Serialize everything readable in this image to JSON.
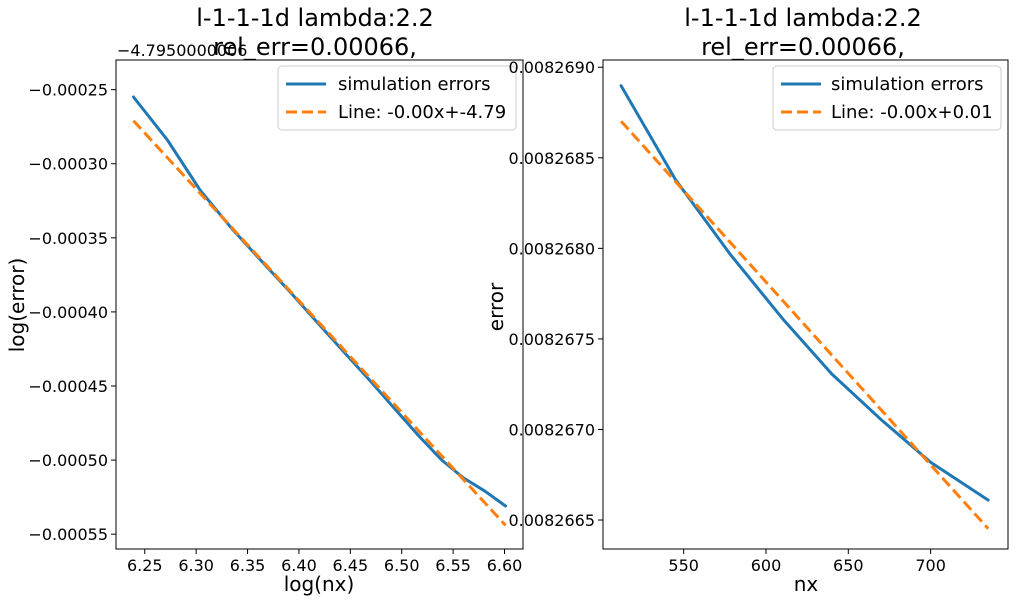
{
  "chart_data": [
    {
      "type": "line",
      "title": [
        "l-1-1-1d lambda:2.2",
        "rel_err=0.00066,"
      ],
      "offset_text": "−4.7950000006",
      "xlabel": "log(nx)",
      "ylabel": "log(error)",
      "xlim": [
        6.222,
        6.618
      ],
      "ylim": [
        -0.00056,
        -0.00023
      ],
      "xticks": [
        6.25,
        6.3,
        6.35,
        6.4,
        6.45,
        6.5,
        6.55,
        6.6
      ],
      "xtick_labels": [
        "6.25",
        "6.30",
        "6.35",
        "6.40",
        "6.45",
        "6.50",
        "6.55",
        "6.60"
      ],
      "yticks": [
        -0.00025,
        -0.0003,
        -0.00035,
        -0.0004,
        -0.00045,
        -0.0005,
        -0.00055
      ],
      "ytick_labels": [
        "−0.00025",
        "−0.00030",
        "−0.00035",
        "−0.00040",
        "−0.00045",
        "−0.00050",
        "−0.00055"
      ],
      "legend_position": "top-right",
      "grid": false,
      "series": [
        {
          "name": "simulation errors",
          "style": "solid",
          "color": "#1f77b4",
          "x": [
            6.239,
            6.272,
            6.304,
            6.335,
            6.364,
            6.392,
            6.419,
            6.445,
            6.47,
            6.494,
            6.517,
            6.539,
            6.56,
            6.581,
            6.601
          ],
          "y": [
            -0.000255,
            -0.000284,
            -0.000318,
            -0.000344,
            -0.000366,
            -0.000387,
            -0.000408,
            -0.000428,
            -0.000447,
            -0.000466,
            -0.000484,
            -0.0005,
            -0.000512,
            -0.000521,
            -0.000531
          ]
        },
        {
          "name": "Line: -0.00x+-4.79",
          "style": "dashed",
          "color": "#ff7f0e",
          "x": [
            6.239,
            6.601
          ],
          "y": [
            -0.000271,
            -0.000544
          ]
        }
      ]
    },
    {
      "type": "line",
      "title": [
        "l-1-1-1d lambda:2.2",
        "rel_err=0.00066,"
      ],
      "xlabel": "nx",
      "ylabel": "error",
      "xlim": [
        501,
        747
      ],
      "ylim": [
        0.00826634,
        0.00826904
      ],
      "xticks": [
        550,
        600,
        650,
        700
      ],
      "xtick_labels": [
        "550",
        "600",
        "650",
        "700"
      ],
      "yticks": [
        0.0082665,
        0.008267,
        0.0082675,
        0.008268,
        0.0082685,
        0.008269
      ],
      "ytick_labels": [
        "0.0082665",
        "0.0082670",
        "0.0082675",
        "0.0082680",
        "0.0082685",
        "0.0082690"
      ],
      "legend_position": "top-right",
      "grid": false,
      "series": [
        {
          "name": "simulation errors",
          "style": "solid",
          "color": "#1f77b4",
          "x": [
            512,
            545,
            578,
            610,
            640,
            670,
            700,
            735
          ],
          "y": [
            0.008268898,
            0.00826838,
            0.00826797,
            0.008267612,
            0.008267306,
            0.008267054,
            0.008266819,
            0.00826661
          ]
        },
        {
          "name": "Line: -0.00x+0.01",
          "style": "dashed",
          "color": "#ff7f0e",
          "x": [
            512,
            735
          ],
          "y": [
            0.008268702,
            0.008266452
          ]
        }
      ]
    }
  ]
}
